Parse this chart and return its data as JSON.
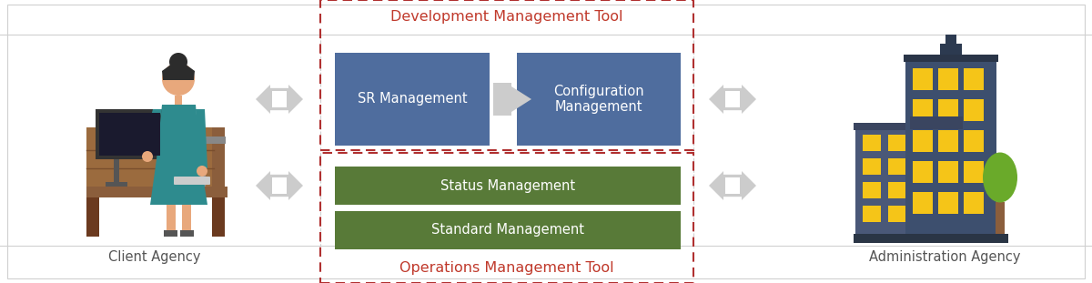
{
  "fig_width": 12.0,
  "fig_height": 3.11,
  "dpi": 100,
  "bg_color": "#ffffff",
  "outer_border_color": "#d0d0d0",
  "dashed_border_color": "#b03030",
  "dev_label": "Development Management Tool",
  "ops_label": "Operations Management Tool",
  "tool_label_color": "#c0392b",
  "sr_box_color": "#4f6d9e",
  "cfg_box_color": "#4f6d9e",
  "status_box_color": "#587a38",
  "standard_box_color": "#587a38",
  "sr_label": "SR Management",
  "cfg_label": "Configuration\nManagement",
  "status_label": "Status Management",
  "standard_label": "Standard Management",
  "client_label": "Client Agency",
  "admin_label": "Administration Agency",
  "arrow_color": "#cccccc",
  "arrow_inner": "#ffffff",
  "text_color": "#555555",
  "box_text_color": "#ffffff",
  "person_skin": "#e8a87c",
  "person_hair": "#2c2c2c",
  "person_body": "#2e8b8e",
  "person_skirt": "#2e8b8e",
  "person_legs": "#e8a87c",
  "person_shoes": "#555555",
  "desk_color": "#8B5E3C",
  "desk_leg_color": "#6B3A1F",
  "monitor_body": "#333333",
  "monitor_screen": "#1a1a2e",
  "keyboard_color": "#cccccc",
  "bld_main_color": "#3d4f6e",
  "bld_side_color": "#5a6a8a",
  "bld_roof_color": "#2c3a50",
  "bld_window_color": "#f5c518",
  "bld_base_color": "#2a3545",
  "tree_color": "#6aaa2a",
  "tree_trunk": "#8B5E3C"
}
